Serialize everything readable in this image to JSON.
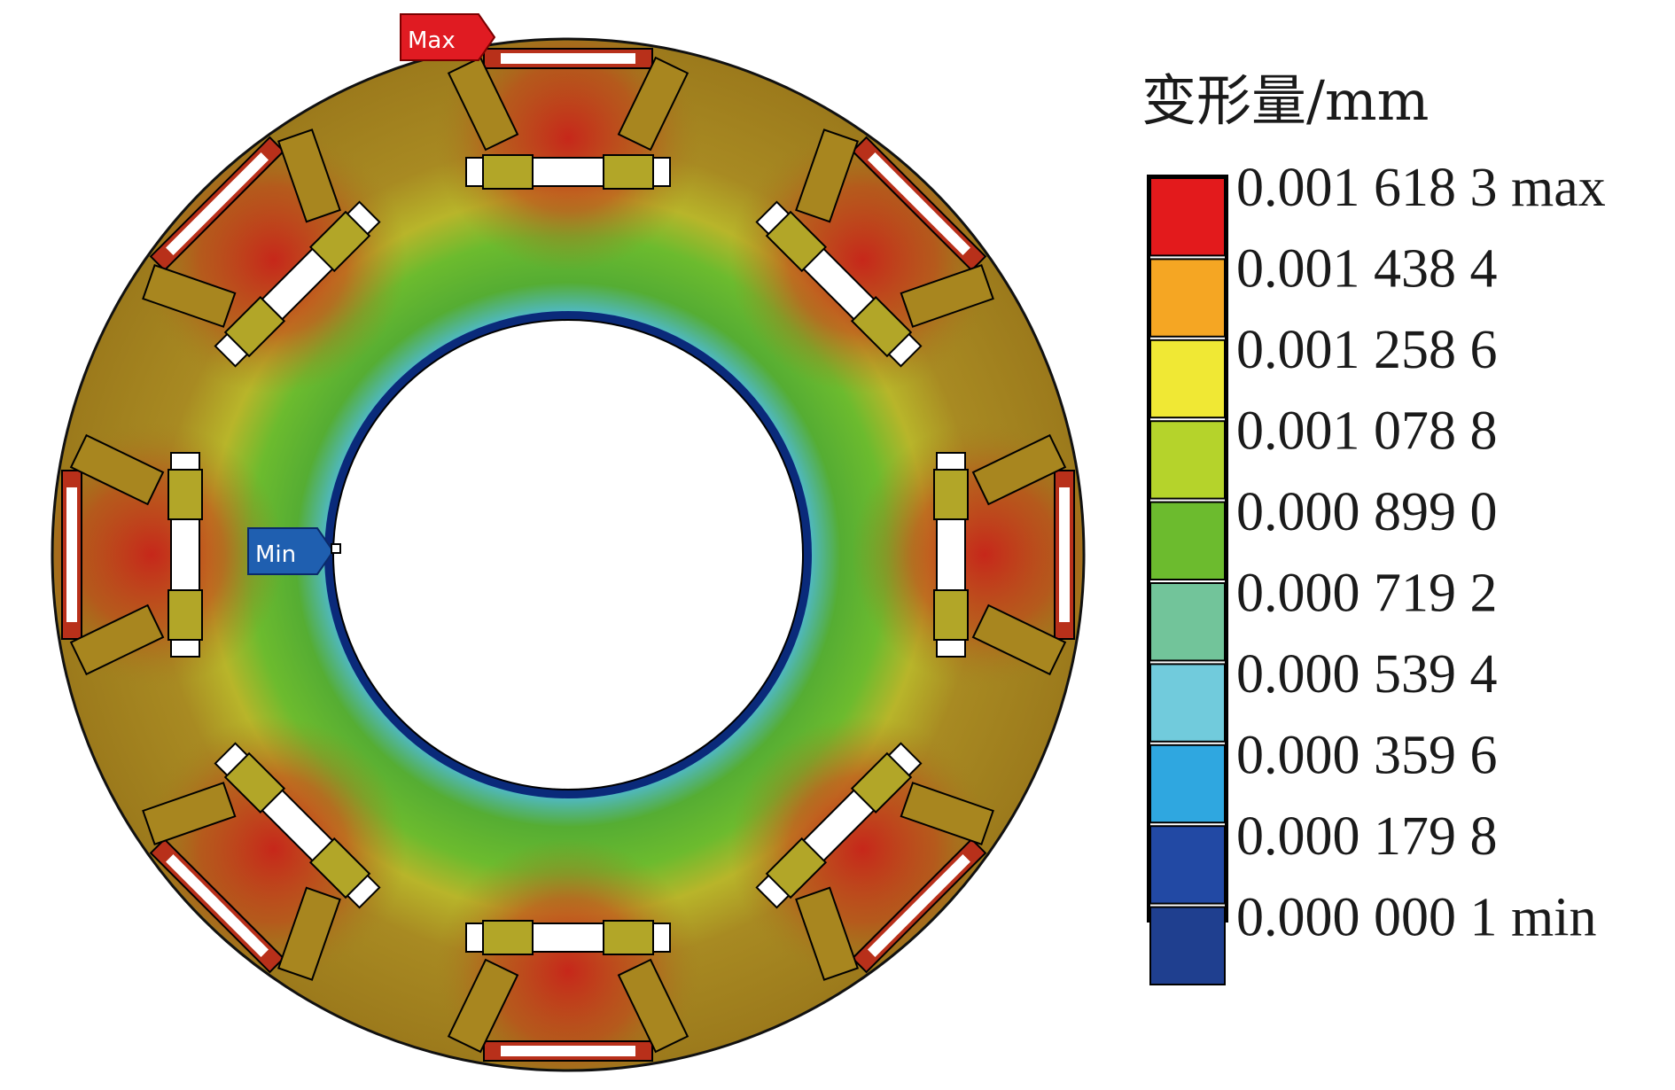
{
  "legend": {
    "title": "变形量/mm",
    "entries": [
      {
        "label": "0.001 618 3 max",
        "color": "#e31a1c"
      },
      {
        "label": "0.001 438 4",
        "color": "#f5a623"
      },
      {
        "label": "0.001 258 6",
        "color": "#f0e834"
      },
      {
        "label": "0.001 078 8",
        "color": "#b5d32b"
      },
      {
        "label": "0.000 899 0",
        "color": "#6cbb2e"
      },
      {
        "label": "0.000 719 2",
        "color": "#72c49a"
      },
      {
        "label": "0.000 539 4",
        "color": "#71cbdc"
      },
      {
        "label": "0.000 359 6",
        "color": "#2fa7e0"
      },
      {
        "label": "0.000 179 8",
        "color": "#2249a4"
      },
      {
        "label": "0.000 000 1 min",
        "color": "#1f3f8f"
      }
    ]
  },
  "probes": {
    "max_label": "Max",
    "min_label": "Min",
    "max_color": "#e01b22",
    "min_color": "#1f5fb0"
  },
  "colors": {
    "outer_band": "#a07a1d",
    "hot": "#c22a1a",
    "mid": "#b8b52a",
    "green": "#55ad33",
    "cyan": "#4fb9c8",
    "inner_edge": "#0a2a7a"
  }
}
